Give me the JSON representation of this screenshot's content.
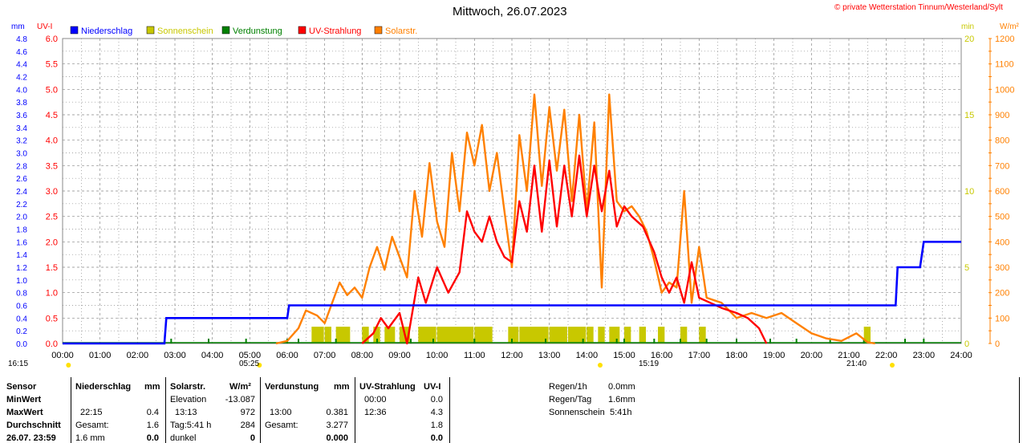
{
  "chart_data": {
    "type": "line",
    "title": "Mittwoch, 26.07.2023",
    "copyright": "© private Wetterstation Tinnum/Westerland/Sylt",
    "left_unit_mm": "mm",
    "left_unit_uv": "UV-I",
    "right_unit_min": "min",
    "right_unit_wm2": "W/m²",
    "legend": [
      {
        "name": "Niederschlag",
        "color": "#0000ff"
      },
      {
        "name": "Sonnenschein",
        "color": "#c8c800"
      },
      {
        "name": "Verdunstung",
        "color": "#008000"
      },
      {
        "name": "UV-Strahlung",
        "color": "#ff0000"
      },
      {
        "name": "Solarstr.",
        "color": "#ff8000"
      }
    ],
    "x_ticks": [
      "00:00",
      "01:00",
      "02:00",
      "03:00",
      "04:00",
      "05:00",
      "06:00",
      "07:00",
      "08:00",
      "09:00",
      "10:00",
      "11:00",
      "12:00",
      "13:00",
      "14:00",
      "15:00",
      "16:00",
      "17:00",
      "18:00",
      "19:00",
      "20:00",
      "21:00",
      "22:00",
      "23:00",
      "24:00"
    ],
    "uv_ticks": [
      "6.0",
      "5.5",
      "5.0",
      "4.5",
      "4.0",
      "3.5",
      "3.0",
      "2.5",
      "2.0",
      "1.5",
      "1.0",
      "0.5",
      "0.0"
    ],
    "mm_ticks": [
      "4.8",
      "4.6",
      "4.4",
      "4.2",
      "4.0",
      "3.8",
      "3.6",
      "3.4",
      "3.2",
      "3.0",
      "2.8",
      "2.6",
      "2.4",
      "2.2",
      "2.0",
      "1.8",
      "1.6",
      "1.4",
      "1.2",
      "1.0",
      "0.8",
      "0.6",
      "0.4",
      "0.2",
      "0.0"
    ],
    "min_ticks": [
      "20",
      "15",
      "10",
      "5",
      "0"
    ],
    "wm2_ticks": [
      "1200",
      "1100",
      "1000",
      "900",
      "800",
      "700",
      "600",
      "500",
      "400",
      "300",
      "200",
      "100",
      "0"
    ],
    "ylim_uv": [
      0,
      6
    ],
    "ylim_mm": [
      0,
      4.8
    ],
    "ylim_min": [
      0,
      20
    ],
    "ylim_wm2": [
      0,
      1200
    ],
    "xlim_hours": [
      0,
      24
    ],
    "sunrise": "05:25",
    "sunset": "21:40",
    "solar_noon": "15:19",
    "sunrise_left": "16:15",
    "niederschlag_mm": [
      [
        0,
        0
      ],
      [
        2.72,
        0
      ],
      [
        2.77,
        0.4
      ],
      [
        6.0,
        0.4
      ],
      [
        6.05,
        0.6
      ],
      [
        22.25,
        0.6
      ],
      [
        22.3,
        1.2
      ],
      [
        22.9,
        1.2
      ],
      [
        22.95,
        1.4
      ],
      [
        23.0,
        1.6
      ],
      [
        24,
        1.6
      ]
    ],
    "uv_index": [
      [
        8.0,
        0
      ],
      [
        8.3,
        0.2
      ],
      [
        8.5,
        0.5
      ],
      [
        8.7,
        0.3
      ],
      [
        9.0,
        0.6
      ],
      [
        9.2,
        0
      ],
      [
        9.5,
        1.3
      ],
      [
        9.7,
        0.8
      ],
      [
        10.0,
        1.5
      ],
      [
        10.3,
        1.0
      ],
      [
        10.6,
        1.4
      ],
      [
        10.8,
        2.6
      ],
      [
        11.0,
        2.2
      ],
      [
        11.2,
        2.0
      ],
      [
        11.4,
        2.5
      ],
      [
        11.6,
        2.0
      ],
      [
        11.8,
        1.7
      ],
      [
        12.0,
        1.6
      ],
      [
        12.2,
        2.8
      ],
      [
        12.4,
        2.2
      ],
      [
        12.6,
        3.5
      ],
      [
        12.8,
        2.2
      ],
      [
        13.0,
        3.6
      ],
      [
        13.2,
        2.3
      ],
      [
        13.4,
        3.5
      ],
      [
        13.6,
        2.5
      ],
      [
        13.8,
        3.7
      ],
      [
        14.0,
        2.5
      ],
      [
        14.2,
        3.5
      ],
      [
        14.4,
        2.6
      ],
      [
        14.6,
        3.4
      ],
      [
        14.8,
        2.3
      ],
      [
        15.0,
        2.7
      ],
      [
        15.2,
        2.5
      ],
      [
        15.5,
        2.3
      ],
      [
        15.8,
        1.8
      ],
      [
        16.0,
        1.3
      ],
      [
        16.2,
        1.0
      ],
      [
        16.4,
        1.3
      ],
      [
        16.6,
        0.8
      ],
      [
        16.8,
        1.6
      ],
      [
        17.0,
        0.9
      ],
      [
        17.3,
        0.8
      ],
      [
        17.6,
        0.7
      ],
      [
        18.0,
        0.6
      ],
      [
        18.3,
        0.5
      ],
      [
        18.6,
        0.3
      ],
      [
        18.8,
        0
      ]
    ],
    "solar_wm2": [
      [
        5.7,
        0
      ],
      [
        6.0,
        10
      ],
      [
        6.3,
        60
      ],
      [
        6.5,
        130
      ],
      [
        6.8,
        110
      ],
      [
        7.0,
        80
      ],
      [
        7.2,
        160
      ],
      [
        7.4,
        240
      ],
      [
        7.6,
        190
      ],
      [
        7.8,
        220
      ],
      [
        8.0,
        180
      ],
      [
        8.2,
        300
      ],
      [
        8.4,
        380
      ],
      [
        8.6,
        290
      ],
      [
        8.8,
        420
      ],
      [
        9.0,
        340
      ],
      [
        9.2,
        260
      ],
      [
        9.4,
        600
      ],
      [
        9.6,
        420
      ],
      [
        9.8,
        710
      ],
      [
        10.0,
        480
      ],
      [
        10.2,
        380
      ],
      [
        10.4,
        750
      ],
      [
        10.6,
        520
      ],
      [
        10.8,
        830
      ],
      [
        11.0,
        700
      ],
      [
        11.2,
        860
      ],
      [
        11.4,
        600
      ],
      [
        11.6,
        750
      ],
      [
        11.8,
        520
      ],
      [
        12.0,
        300
      ],
      [
        12.2,
        820
      ],
      [
        12.4,
        600
      ],
      [
        12.6,
        980
      ],
      [
        12.8,
        620
      ],
      [
        13.0,
        930
      ],
      [
        13.2,
        680
      ],
      [
        13.4,
        920
      ],
      [
        13.6,
        560
      ],
      [
        13.8,
        900
      ],
      [
        14.0,
        520
      ],
      [
        14.2,
        870
      ],
      [
        14.4,
        220
      ],
      [
        14.6,
        980
      ],
      [
        14.8,
        560
      ],
      [
        15.0,
        520
      ],
      [
        15.2,
        540
      ],
      [
        15.4,
        500
      ],
      [
        15.6,
        440
      ],
      [
        15.8,
        330
      ],
      [
        16.0,
        200
      ],
      [
        16.2,
        240
      ],
      [
        16.4,
        220
      ],
      [
        16.6,
        600
      ],
      [
        16.8,
        160
      ],
      [
        17.0,
        380
      ],
      [
        17.2,
        180
      ],
      [
        17.6,
        160
      ],
      [
        18.0,
        100
      ],
      [
        18.4,
        120
      ],
      [
        18.8,
        100
      ],
      [
        19.2,
        120
      ],
      [
        19.6,
        80
      ],
      [
        20.0,
        40
      ],
      [
        20.4,
        20
      ],
      [
        20.8,
        10
      ],
      [
        21.2,
        40
      ],
      [
        21.5,
        5
      ],
      [
        21.7,
        0
      ]
    ],
    "sunshine_blocks_h": [
      [
        6.65,
        7.0
      ],
      [
        7.0,
        7.2
      ],
      [
        7.3,
        7.7
      ],
      [
        8.0,
        8.2
      ],
      [
        8.3,
        8.5
      ],
      [
        8.6,
        8.9
      ],
      [
        9.0,
        9.3
      ],
      [
        9.5,
        10.0
      ],
      [
        10.0,
        11.0
      ],
      [
        11.0,
        11.5
      ],
      [
        11.9,
        12.2
      ],
      [
        12.2,
        13.0
      ],
      [
        13.0,
        13.5
      ],
      [
        13.5,
        14.0
      ],
      [
        14.0,
        14.2
      ],
      [
        14.3,
        14.5
      ],
      [
        14.6,
        14.9
      ],
      [
        15.0,
        15.2
      ],
      [
        15.4,
        15.6
      ],
      [
        15.9,
        16.1
      ],
      [
        16.5,
        16.7
      ],
      [
        17.0,
        17.2
      ],
      [
        21.4,
        21.6
      ]
    ],
    "evaporation_ticks_h": [
      2.9,
      3.9,
      4.9,
      6.0,
      6.3,
      7.3,
      8.4,
      9.3,
      9.9,
      11.0,
      12.0,
      12.9,
      13.9,
      14.8,
      15.0,
      15.8,
      16.5,
      17.2,
      18.0,
      18.9,
      19.6,
      20.5,
      21.4,
      22.5,
      23.0
    ]
  },
  "sensor_table": {
    "col_sensor": {
      "header": "Sensor",
      "rows": [
        "MinWert",
        "MaxWert",
        "Durchschnitt",
        "26.07. 23:59"
      ]
    },
    "col_niederschlag": {
      "header": "Niederschlag",
      "unit": "mm",
      "r2a": "22:15",
      "r2b": "0.4",
      "r3a": "Gesamt:",
      "r3b": "1.6",
      "r4a": "1.6 mm",
      "r4b": "0.0"
    },
    "col_solar": {
      "header": "Solarstr.",
      "unit": "W/m²",
      "r1a": "Elevation",
      "r1b": "-13.087",
      "r2a": "13:13",
      "r2b": "972",
      "r3a": "Tag:5:41 h",
      "r3b": "284",
      "r4a": "dunkel",
      "r4b": "0"
    },
    "col_verdunstung": {
      "header": "Verdunstung",
      "unit": "mm",
      "r2a": "13:00",
      "r2b": "0.381",
      "r3a": "Gesamt:",
      "r3b": "3.277",
      "r4b": "0.000"
    },
    "col_uv": {
      "header": "UV-Strahlung",
      "unit": "UV-I",
      "r1a": "00:00",
      "r1b": "0.0",
      "r2a": "12:36",
      "r2b": "4.3",
      "r3b": "1.8",
      "r4b": "0.0"
    },
    "summary": [
      {
        "label": "Regen/1h",
        "value": "0.0mm"
      },
      {
        "label": "Regen/Tag",
        "value": "1.6mm"
      },
      {
        "label": "Sonnenschein",
        "value": "5:41h"
      }
    ]
  }
}
